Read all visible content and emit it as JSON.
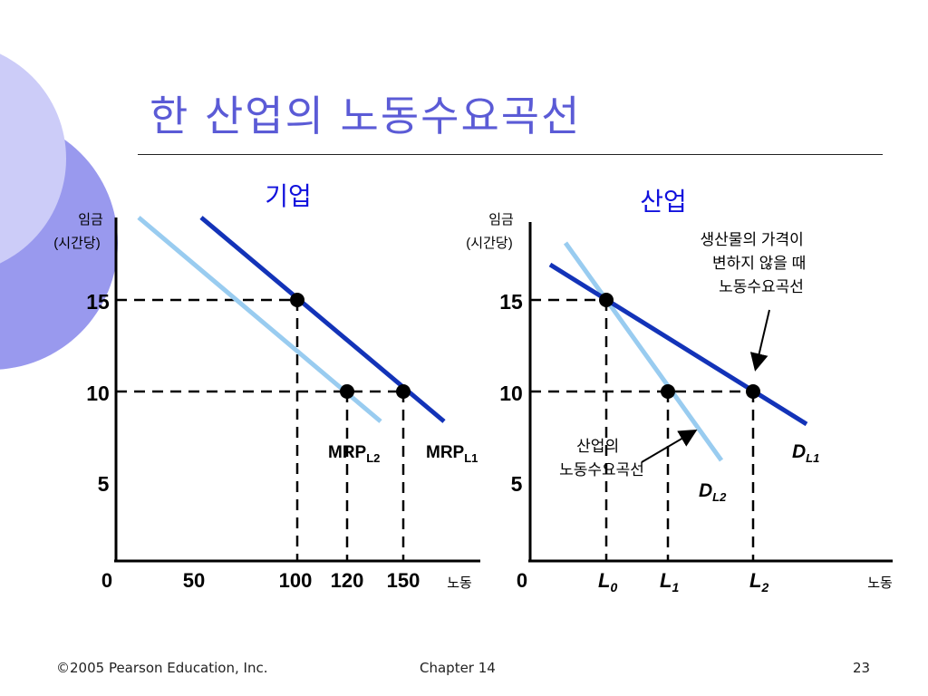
{
  "slide": {
    "title": "한 산업의 노동수요곡선",
    "footer_left": "©2005 Pearson Education, Inc.",
    "footer_center": "Chapter 14",
    "footer_right": "23"
  },
  "colors": {
    "title": "#5b5bd6",
    "dark_line": "#1333b8",
    "light_line": "#99ccf0",
    "decor_outer": "#9999ee",
    "decor_inner": "#ccccf8"
  },
  "chart_data": [
    {
      "type": "line",
      "title": "기업",
      "ylabel": "임금",
      "ylabel_sub": "(시간당)",
      "xlabel": "노동",
      "x_ticks": [
        "0",
        "50",
        "100",
        "120",
        "150"
      ],
      "y_ticks": [
        "5",
        "10",
        "15"
      ],
      "series": [
        {
          "name": "MRP",
          "sub": "L1",
          "x": [
            100,
            150
          ],
          "y": [
            15,
            10
          ]
        },
        {
          "name": "MRP",
          "sub": "L2",
          "x": [
            120
          ],
          "y": [
            10
          ]
        }
      ],
      "points": [
        {
          "x": 100,
          "y": 15
        },
        {
          "x": 120,
          "y": 10
        },
        {
          "x": 150,
          "y": 10
        }
      ]
    },
    {
      "type": "line",
      "title": "산업",
      "ylabel": "임금",
      "ylabel_sub": "(시간당)",
      "xlabel": "노동",
      "x_ticks": [
        {
          "main": "0",
          "sub": ""
        },
        {
          "main": "L",
          "sub": "0"
        },
        {
          "main": "L",
          "sub": "1"
        },
        {
          "main": "L",
          "sub": "2"
        }
      ],
      "y_ticks": [
        "5",
        "10",
        "15"
      ],
      "series": [
        {
          "name": "D",
          "sub": "L1"
        },
        {
          "name": "D",
          "sub": "L2"
        }
      ],
      "points": [
        {
          "x": "L0",
          "y": 15
        },
        {
          "x": "L1",
          "y": 10
        },
        {
          "x": "L2",
          "y": 10
        }
      ],
      "annotations": [
        {
          "lines": [
            "생산물의 가격이",
            "변하지 않을 때",
            "노동수요곡선"
          ]
        },
        {
          "lines": [
            "산업의",
            "노동수요곡선"
          ]
        }
      ]
    }
  ]
}
